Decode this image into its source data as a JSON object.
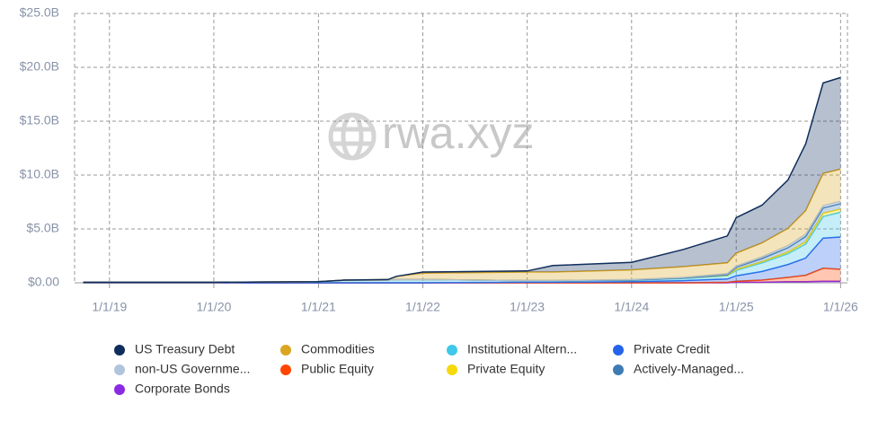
{
  "chart_data": {
    "type": "stacked-area",
    "watermark": "rwa.xyz",
    "x": [
      "10/1/18",
      "1/1/20",
      "1/1/21",
      "4/1/21",
      "9/1/21",
      "10/1/21",
      "1/1/22",
      "1/1/23",
      "4/1/23",
      "1/1/24",
      "7/1/24",
      "12/1/24",
      "1/1/25",
      "4/1/25",
      "7/1/25",
      "9/1/25",
      "11/1/25",
      "1/1/26"
    ],
    "xlim": [
      "9/1/18",
      "1/25/26"
    ],
    "xticks": [
      "1/1/19",
      "1/1/20",
      "1/1/21",
      "1/1/22",
      "1/1/23",
      "1/1/24",
      "1/1/25",
      "1/1/26"
    ],
    "ylim": [
      0,
      25
    ],
    "yticks": [
      {
        "value": 0,
        "label": "$0.00"
      },
      {
        "value": 5,
        "label": "$5.0B"
      },
      {
        "value": 10,
        "label": "$10.0B"
      },
      {
        "value": 15,
        "label": "$15.0B"
      },
      {
        "value": 20,
        "label": "$20.0B"
      },
      {
        "value": 25,
        "label": "$25.0B"
      }
    ],
    "grid": true,
    "series": [
      {
        "name": "Corporate Bonds",
        "color": "#8a2be2",
        "values": [
          0,
          0,
          0,
          0,
          0,
          0,
          0,
          0,
          0,
          0,
          0,
          0,
          0.05,
          0.05,
          0.1,
          0.1,
          0.15,
          0.15
        ]
      },
      {
        "name": "Public Equity",
        "color": "#ff4500",
        "values": [
          0,
          0,
          0,
          0,
          0,
          0,
          0,
          0,
          0,
          0,
          0,
          0.05,
          0.1,
          0.2,
          0.4,
          0.6,
          1.2,
          1.1
        ]
      },
      {
        "name": "Private Credit",
        "color": "#2563eb",
        "values": [
          0,
          0,
          0,
          0,
          0,
          0,
          0,
          0.05,
          0.05,
          0.1,
          0.2,
          0.3,
          0.5,
          0.8,
          1.2,
          1.6,
          2.8,
          3.0
        ]
      },
      {
        "name": "Institutional Altern...",
        "color": "#3ec8ea",
        "values": [
          0.05,
          0.05,
          0.1,
          0.25,
          0.25,
          0.3,
          0.3,
          0.15,
          0.15,
          0.15,
          0.2,
          0.3,
          0.5,
          0.8,
          1.0,
          1.3,
          2.0,
          2.3
        ]
      },
      {
        "name": "Private Equity",
        "color": "#f5d90a",
        "values": [
          0,
          0,
          0,
          0,
          0,
          0,
          0,
          0,
          0,
          0,
          0.05,
          0.05,
          0.1,
          0.1,
          0.15,
          0.2,
          0.3,
          0.3
        ]
      },
      {
        "name": "Actively-Managed...",
        "color": "#3f7bb3",
        "values": [
          0,
          0,
          0,
          0,
          0,
          0,
          0,
          0,
          0,
          0,
          0,
          0.05,
          0.2,
          0.3,
          0.4,
          0.5,
          0.5,
          0.5
        ]
      },
      {
        "name": "non-US Governme...",
        "color": "#b0c4de",
        "values": [
          0,
          0,
          0,
          0,
          0,
          0,
          0,
          0,
          0,
          0.05,
          0.05,
          0.1,
          0.1,
          0.15,
          0.2,
          0.2,
          0.2,
          0.2
        ]
      },
      {
        "name": "Commodities",
        "color": "#daa520",
        "values": [
          0,
          0,
          0,
          0,
          0.05,
          0.3,
          0.6,
          0.8,
          0.8,
          0.9,
          1.0,
          1.0,
          1.2,
          1.3,
          1.6,
          2.2,
          3.0,
          3.0
        ]
      },
      {
        "name": "US Treasury Debt",
        "color": "#0f2d5c",
        "values": [
          0,
          0,
          0,
          0,
          0,
          0,
          0.1,
          0.1,
          0.6,
          0.7,
          1.6,
          2.5,
          3.3,
          3.5,
          4.5,
          6.2,
          8.4,
          8.5
        ]
      }
    ],
    "legend_order": [
      8,
      7,
      3,
      2,
      6,
      1,
      4,
      5,
      0
    ]
  }
}
